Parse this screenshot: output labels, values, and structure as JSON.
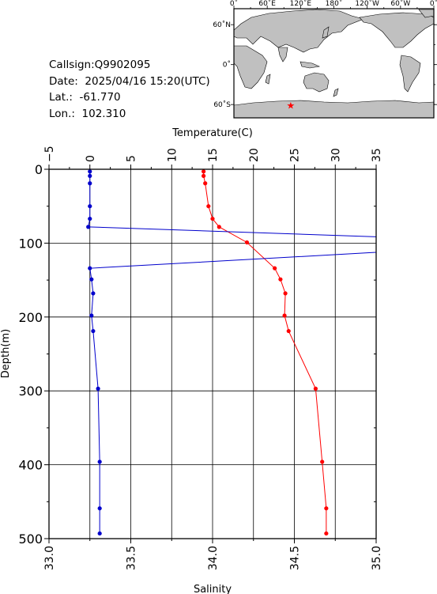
{
  "info": {
    "callsign": "Callsign:Q9902095",
    "date": "Date:  2025/04/16 15:20(UTC)",
    "lat": "Lat.:  -61.770",
    "lon": "Lon.:  102.310"
  },
  "map": {
    "top_labels": [
      "0˚",
      "60˚E",
      "120˚E",
      "180˚",
      "120˚W",
      "60˚W",
      "0˚"
    ],
    "side_labels": [
      "60˚N",
      "0˚",
      "60˚S"
    ],
    "marker": {
      "lon": 102.31,
      "lat": -61.77,
      "symbol": "★",
      "color": "#ff0000"
    },
    "land_color": "#c0c0c0",
    "ocean_color": "#ffffff"
  },
  "chart_data": {
    "type": "line",
    "title": "",
    "ylabel": "Depth(m)",
    "ylim": [
      0,
      500
    ],
    "y_inverted": true,
    "y_ticks": [
      "0",
      "100",
      "200",
      "300",
      "400",
      "500"
    ],
    "grid": true,
    "top_axis": {
      "label": "Temperature(C)",
      "range": [
        -5,
        35
      ],
      "ticks": [
        "−5",
        "0",
        "5",
        "10",
        "15",
        "20",
        "25",
        "30",
        "35"
      ]
    },
    "bottom_axis": {
      "label": "Salinity",
      "range": [
        33.0,
        35.0
      ],
      "ticks": [
        "33.0",
        "33.5",
        "34.0",
        "34.5",
        "35.0"
      ]
    },
    "series": [
      {
        "name": "",
        "axis": "top",
        "color": "#ff0000",
        "points": [
          [
            13.9,
            3
          ],
          [
            13.9,
            9
          ],
          [
            14.1,
            19
          ],
          [
            14.5,
            50
          ],
          [
            15.0,
            67
          ],
          [
            15.8,
            78
          ],
          [
            19.2,
            99
          ],
          [
            22.6,
            134
          ],
          [
            23.3,
            149
          ],
          [
            23.9,
            168
          ],
          [
            23.8,
            198
          ],
          [
            24.3,
            219
          ],
          [
            27.6,
            297
          ],
          [
            28.4,
            396
          ],
          [
            28.9,
            459
          ],
          [
            28.9,
            493
          ]
        ]
      },
      {
        "name": "",
        "axis": "bottom",
        "color": "#0000cc",
        "points": [
          [
            33.25,
            3
          ],
          [
            33.25,
            9
          ],
          [
            33.25,
            19
          ],
          [
            33.25,
            50
          ],
          [
            33.25,
            67
          ],
          [
            33.24,
            78
          ],
          [
            35.2,
            93
          ],
          [
            35.2,
            110
          ],
          [
            33.25,
            134
          ],
          [
            33.26,
            149
          ],
          [
            33.27,
            168
          ],
          [
            33.26,
            198
          ],
          [
            33.27,
            219
          ],
          [
            33.3,
            297
          ],
          [
            33.31,
            396
          ],
          [
            33.31,
            459
          ],
          [
            33.31,
            493
          ]
        ]
      }
    ]
  }
}
